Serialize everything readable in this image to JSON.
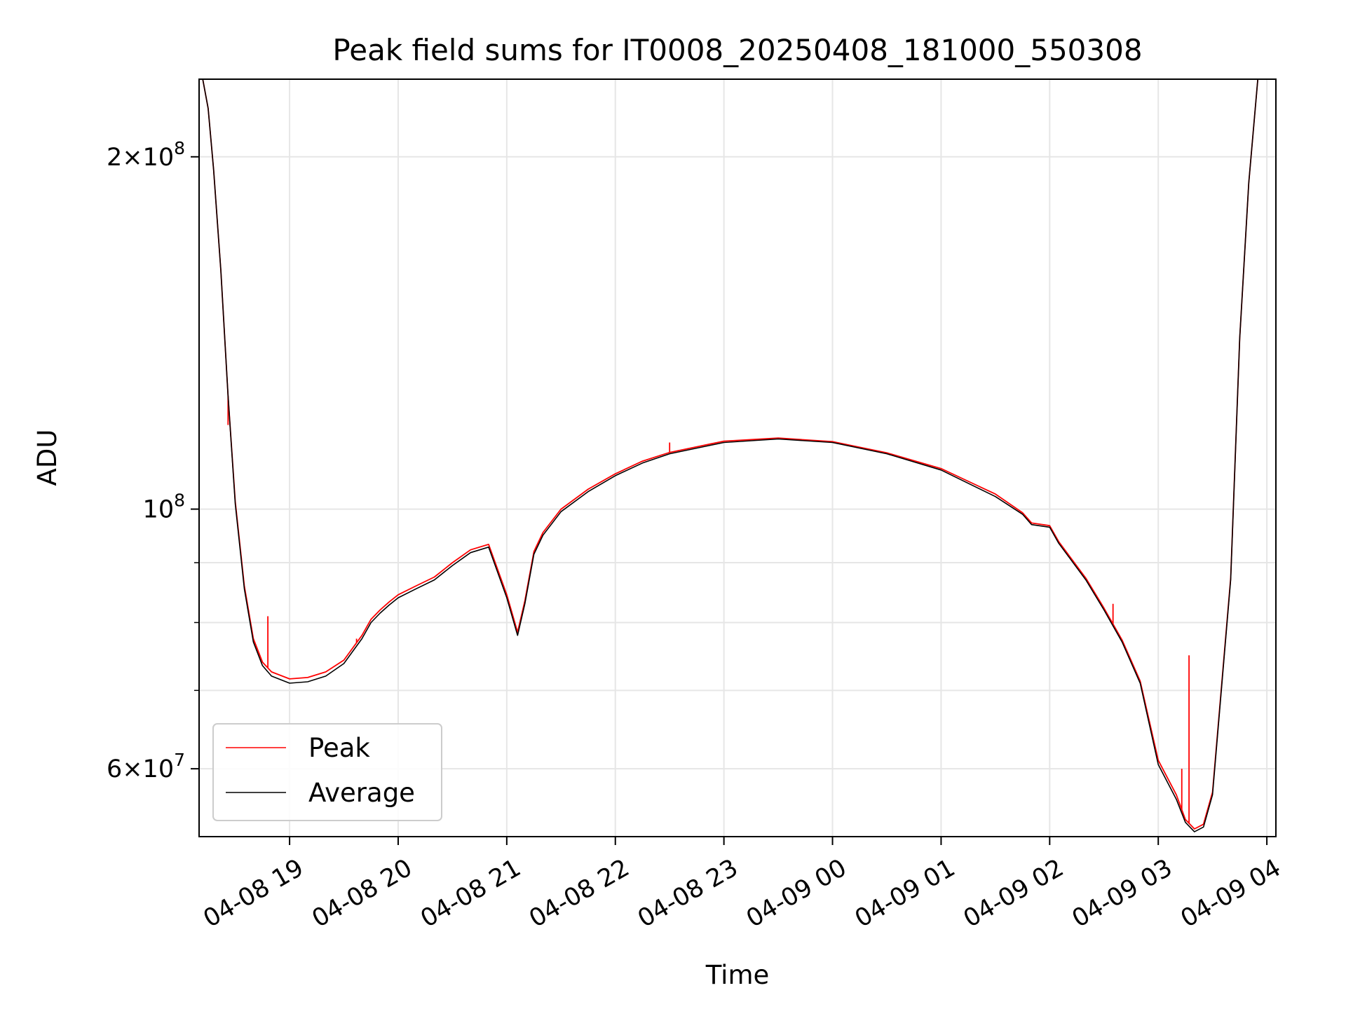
{
  "chart_data": {
    "type": "line",
    "title": "Peak field sums for IT0008_20250408_181000_550308",
    "xlabel": "Time",
    "ylabel": "ADU",
    "yscale": "log",
    "ylim": [
      52500000,
      233000000
    ],
    "xlim": [
      "2025-04-08 18:10",
      "2025-04-09 04:05"
    ],
    "grid": true,
    "legend_position": "lower-left",
    "x_ticks": [
      "04-08 19",
      "04-08 20",
      "04-08 21",
      "04-08 22",
      "04-08 23",
      "04-09 00",
      "04-09 01",
      "04-09 02",
      "04-09 03",
      "04-09 04"
    ],
    "y_major_ticks": [
      {
        "value": 60000000,
        "mantissa": "6",
        "exponent": "7",
        "prefix": "6×"
      },
      {
        "value": 100000000,
        "mantissa": "",
        "exponent": "8",
        "prefix": ""
      },
      {
        "value": 200000000,
        "mantissa": "2",
        "exponent": "8",
        "prefix": "2×"
      }
    ],
    "y_minor_ticks": [
      70000000,
      80000000,
      90000000
    ],
    "series": [
      {
        "name": "Average",
        "color": "#000000",
        "x": [
          "2025-04-08 18:12",
          "2025-04-08 18:15",
          "2025-04-08 18:18",
          "2025-04-08 18:22",
          "2025-04-08 18:26",
          "2025-04-08 18:30",
          "2025-04-08 18:35",
          "2025-04-08 18:40",
          "2025-04-08 18:45",
          "2025-04-08 18:50",
          "2025-04-08 19:00",
          "2025-04-08 19:10",
          "2025-04-08 19:20",
          "2025-04-08 19:30",
          "2025-04-08 19:40",
          "2025-04-08 19:45",
          "2025-04-08 19:50",
          "2025-04-08 19:55",
          "2025-04-08 20:00",
          "2025-04-08 20:10",
          "2025-04-08 20:20",
          "2025-04-08 20:30",
          "2025-04-08 20:40",
          "2025-04-08 20:50",
          "2025-04-08 21:00",
          "2025-04-08 21:06",
          "2025-04-08 21:10",
          "2025-04-08 21:15",
          "2025-04-08 21:20",
          "2025-04-08 21:30",
          "2025-04-08 21:45",
          "2025-04-08 22:00",
          "2025-04-08 22:15",
          "2025-04-08 22:30",
          "2025-04-08 23:00",
          "2025-04-08 23:30",
          "2025-04-09 00:00",
          "2025-04-09 00:30",
          "2025-04-09 01:00",
          "2025-04-09 01:30",
          "2025-04-09 01:45",
          "2025-04-09 01:50",
          "2025-04-09 02:00",
          "2025-04-09 02:05",
          "2025-04-09 02:20",
          "2025-04-09 02:30",
          "2025-04-09 02:40",
          "2025-04-09 02:50",
          "2025-04-09 03:00",
          "2025-04-09 03:10",
          "2025-04-09 03:15",
          "2025-04-09 03:20",
          "2025-04-09 03:25",
          "2025-04-09 03:30",
          "2025-04-09 03:40",
          "2025-04-09 03:45",
          "2025-04-09 03:50",
          "2025-04-09 03:55"
        ],
        "values": [
          233000000,
          220000000,
          195000000,
          160000000,
          125000000,
          101000000,
          85500000,
          77000000,
          73500000,
          72000000,
          71000000,
          71200000,
          72000000,
          73800000,
          77500000,
          80000000,
          81500000,
          82800000,
          84000000,
          85500000,
          87000000,
          89500000,
          91800000,
          92800000,
          84000000,
          78000000,
          83000000,
          91500000,
          95000000,
          99500000,
          103500000,
          106800000,
          109500000,
          111500000,
          114000000,
          114800000,
          114000000,
          111500000,
          108000000,
          102500000,
          99000000,
          97000000,
          96500000,
          93500000,
          87000000,
          82000000,
          77000000,
          71000000,
          60500000,
          56500000,
          54000000,
          53000000,
          53500000,
          57000000,
          87000000,
          140000000,
          190000000,
          233000000
        ]
      },
      {
        "name": "Peak",
        "color": "#ff0000",
        "x": [
          "2025-04-08 18:12",
          "2025-04-08 18:15",
          "2025-04-08 18:18",
          "2025-04-08 18:22",
          "2025-04-08 18:26",
          "2025-04-08 18:30",
          "2025-04-08 18:35",
          "2025-04-08 18:40",
          "2025-04-08 18:45",
          "2025-04-08 18:50",
          "2025-04-08 19:00",
          "2025-04-08 19:10",
          "2025-04-08 19:20",
          "2025-04-08 19:30",
          "2025-04-08 19:40",
          "2025-04-08 19:45",
          "2025-04-08 19:50",
          "2025-04-08 19:55",
          "2025-04-08 20:00",
          "2025-04-08 20:10",
          "2025-04-08 20:20",
          "2025-04-08 20:30",
          "2025-04-08 20:40",
          "2025-04-08 20:50",
          "2025-04-08 21:00",
          "2025-04-08 21:06",
          "2025-04-08 21:10",
          "2025-04-08 21:15",
          "2025-04-08 21:20",
          "2025-04-08 21:30",
          "2025-04-08 21:45",
          "2025-04-08 22:00",
          "2025-04-08 22:15",
          "2025-04-08 22:30",
          "2025-04-08 23:00",
          "2025-04-08 23:30",
          "2025-04-09 00:00",
          "2025-04-09 00:30",
          "2025-04-09 01:00",
          "2025-04-09 01:30",
          "2025-04-09 01:45",
          "2025-04-09 01:50",
          "2025-04-09 02:00",
          "2025-04-09 02:05",
          "2025-04-09 02:20",
          "2025-04-09 02:30",
          "2025-04-09 02:40",
          "2025-04-09 02:50",
          "2025-04-09 03:00",
          "2025-04-09 03:10",
          "2025-04-09 03:15",
          "2025-04-09 03:20",
          "2025-04-09 03:25",
          "2025-04-09 03:30",
          "2025-04-09 03:40",
          "2025-04-09 03:45",
          "2025-04-09 03:50",
          "2025-04-09 03:55"
        ],
        "values": [
          233000000,
          220000000,
          195000000,
          160000000,
          125000000,
          101500000,
          86000000,
          77500000,
          74000000,
          72600000,
          71600000,
          71800000,
          72600000,
          74300000,
          78000000,
          80500000,
          82000000,
          83300000,
          84500000,
          86000000,
          87500000,
          90000000,
          92300000,
          93300000,
          84500000,
          78500000,
          83500000,
          92000000,
          95500000,
          100000000,
          104000000,
          107200000,
          109900000,
          111800000,
          114300000,
          115000000,
          114200000,
          111700000,
          108300000,
          103000000,
          99300000,
          97300000,
          96800000,
          93800000,
          87300000,
          82300000,
          77300000,
          71300000,
          61000000,
          57000000,
          54300000,
          53300000,
          53800000,
          57300000,
          87300000,
          140000000,
          190000000,
          233000000
        ],
        "spikes": [
          {
            "x": "2025-04-08 18:26",
            "value": 118000000
          },
          {
            "x": "2025-04-08 18:48",
            "value": 81000000
          },
          {
            "x": "2025-04-08 19:37",
            "value": 77500000
          },
          {
            "x": "2025-04-08 22:30",
            "value": 114000000
          },
          {
            "x": "2025-04-09 02:35",
            "value": 83000000
          },
          {
            "x": "2025-04-09 03:13",
            "value": 60000000
          },
          {
            "x": "2025-04-09 03:17",
            "value": 75000000
          }
        ]
      }
    ]
  }
}
